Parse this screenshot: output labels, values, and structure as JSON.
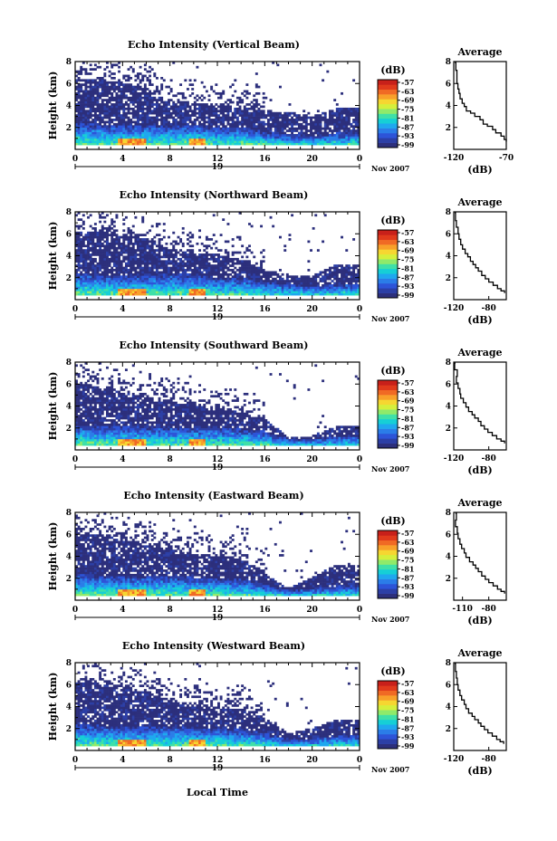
{
  "chart_data": {
    "type": "heatmap",
    "figure_xlabel": "Local Time",
    "colorbar_unit": "(dB)",
    "colorbar_ticks": [
      "-57",
      "-63",
      "-69",
      "-75",
      "-81",
      "-87",
      "-93",
      "-99"
    ],
    "colormap": [
      "#2c2f7c",
      "#2c3fa6",
      "#2d54d8",
      "#2b7de8",
      "#1fa8ef",
      "#16cfd6",
      "#3fe0a8",
      "#8fea6a",
      "#d5ef3c",
      "#f6d631",
      "#f8a02a",
      "#f06a24",
      "#e03a1c",
      "#c8201a"
    ],
    "x_date_label": "19",
    "x_date_suffix": "Nov 2007",
    "avg_ylim": [
      0,
      8
    ],
    "panels": [
      {
        "title": "Echo Intensity (Vertical Beam)",
        "ylabel": "Height (km)",
        "xlim": [
          0,
          24
        ],
        "xticks": [
          "0",
          "4",
          "8",
          "12",
          "16",
          "20",
          "0"
        ],
        "yticks": [
          "2",
          "4",
          "6",
          "8"
        ],
        "ylim": [
          0,
          8
        ],
        "profile": [
          {
            "t": 0,
            "top": 6.3,
            "low": 2.4
          },
          {
            "t": 2,
            "top": 6.4,
            "low": 2.3
          },
          {
            "t": 4,
            "top": 6.1,
            "low": 2.2
          },
          {
            "t": 6,
            "top": 5.6,
            "low": 2.3
          },
          {
            "t": 8,
            "top": 4.3,
            "low": 2.2
          },
          {
            "t": 10,
            "top": 4.2,
            "low": 2.3
          },
          {
            "t": 12,
            "top": 3.9,
            "low": 2.0
          },
          {
            "t": 14,
            "top": 3.8,
            "low": 2.0
          },
          {
            "t": 16,
            "top": 3.6,
            "low": 1.6
          },
          {
            "t": 18,
            "top": 3.4,
            "low": 1.4
          },
          {
            "t": 20,
            "top": 3.0,
            "low": 1.2
          },
          {
            "t": 22,
            "top": 3.7,
            "low": 1.5
          },
          {
            "t": 24,
            "top": 3.9,
            "low": 1.5
          }
        ],
        "avg_xlabel": "(dB)",
        "avg_title": "Average",
        "avg_xlim": [
          -120,
          -70
        ],
        "avg_xticks": [
          "-120",
          "-70"
        ],
        "avg_yticks": [
          "2",
          "4",
          "6",
          "8"
        ],
        "avg_x": [
          -119,
          -118,
          -117,
          -117,
          -116,
          -115,
          -114,
          -112,
          -110,
          -108,
          -104,
          -100,
          -95,
          -92,
          -88,
          -83,
          -80,
          -75,
          -72,
          -70
        ],
        "avg_y": [
          7.9,
          7.2,
          6.6,
          6.0,
          5.5,
          5.1,
          4.6,
          4.2,
          3.9,
          3.5,
          3.3,
          3.0,
          2.7,
          2.3,
          2.1,
          1.8,
          1.5,
          1.2,
          0.9,
          0.7
        ]
      },
      {
        "title": "Echo Intensity (Northward Beam)",
        "ylabel": "Height (km)",
        "xlim": [
          0,
          24
        ],
        "xticks": [
          "0",
          "4",
          "8",
          "12",
          "16",
          "20",
          "0"
        ],
        "yticks": [
          "2",
          "4",
          "6",
          "8"
        ],
        "ylim": [
          0,
          8
        ],
        "profile": [
          {
            "t": 0,
            "top": 6.2,
            "low": 2.4
          },
          {
            "t": 2,
            "top": 6.1,
            "low": 2.3
          },
          {
            "t": 4,
            "top": 5.9,
            "low": 2.2
          },
          {
            "t": 6,
            "top": 5.6,
            "low": 2.3
          },
          {
            "t": 8,
            "top": 4.6,
            "low": 2.3
          },
          {
            "t": 10,
            "top": 4.3,
            "low": 2.3
          },
          {
            "t": 12,
            "top": 4.1,
            "low": 2.0
          },
          {
            "t": 14,
            "top": 3.6,
            "low": 2.0
          },
          {
            "t": 16,
            "top": 2.7,
            "low": 1.6
          },
          {
            "t": 18,
            "top": 2.3,
            "low": 1.4
          },
          {
            "t": 20,
            "top": 2.2,
            "low": 1.2
          },
          {
            "t": 22,
            "top": 3.2,
            "low": 1.4
          },
          {
            "t": 24,
            "top": 3.2,
            "low": 1.5
          }
        ],
        "avg_xlabel": "(dB)",
        "avg_title": "Average",
        "avg_xlim": [
          -120,
          -60
        ],
        "avg_xticks": [
          "-120",
          "-80"
        ],
        "avg_yticks": [
          "2",
          "4",
          "6",
          "8"
        ],
        "avg_x": [
          -119,
          -118,
          -117,
          -115,
          -114,
          -112,
          -110,
          -107,
          -104,
          -101,
          -98,
          -95,
          -92,
          -88,
          -84,
          -80,
          -75,
          -70,
          -66,
          -62
        ],
        "avg_y": [
          7.9,
          7.2,
          6.6,
          6.0,
          5.5,
          5.0,
          4.6,
          4.2,
          3.9,
          3.5,
          3.2,
          2.9,
          2.6,
          2.2,
          1.9,
          1.6,
          1.3,
          1.0,
          0.8,
          0.6
        ]
      },
      {
        "title": "Echo Intensity (Southward Beam)",
        "ylabel": "Height (km)",
        "xlim": [
          0,
          24
        ],
        "xticks": [
          "0",
          "4",
          "8",
          "12",
          "16",
          "20",
          "0"
        ],
        "yticks": [
          "2",
          "4",
          "6",
          "8"
        ],
        "ylim": [
          0,
          8
        ],
        "profile": [
          {
            "t": 0,
            "top": 6.0,
            "low": 2.3
          },
          {
            "t": 2,
            "top": 5.8,
            "low": 2.2
          },
          {
            "t": 4,
            "top": 5.2,
            "low": 2.2
          },
          {
            "t": 6,
            "top": 4.8,
            "low": 2.1
          },
          {
            "t": 8,
            "top": 4.4,
            "low": 2.1
          },
          {
            "t": 10,
            "top": 4.0,
            "low": 2.0
          },
          {
            "t": 12,
            "top": 3.8,
            "low": 2.0
          },
          {
            "t": 14,
            "top": 3.4,
            "low": 1.9
          },
          {
            "t": 16,
            "top": 2.8,
            "low": 1.7
          },
          {
            "t": 18,
            "top": 1.2,
            "low": 1.0
          },
          {
            "t": 20,
            "top": 1.3,
            "low": 1.0
          },
          {
            "t": 22,
            "top": 2.1,
            "low": 1.2
          },
          {
            "t": 24,
            "top": 2.2,
            "low": 1.3
          }
        ],
        "avg_xlabel": "(dB)",
        "avg_title": "Average",
        "avg_xlim": [
          -120,
          -60
        ],
        "avg_xticks": [
          "-120",
          "-80"
        ],
        "avg_yticks": [
          "2",
          "4",
          "6",
          "8"
        ],
        "avg_x": [
          -118,
          -119,
          -116,
          -117,
          -115,
          -113,
          -112,
          -109,
          -106,
          -103,
          -99,
          -96,
          -92,
          -89,
          -85,
          -81,
          -76,
          -71,
          -66,
          -62
        ],
        "avg_y": [
          7.9,
          7.3,
          6.7,
          6.1,
          5.6,
          5.1,
          4.7,
          4.3,
          3.9,
          3.5,
          3.2,
          2.9,
          2.6,
          2.2,
          1.9,
          1.6,
          1.3,
          1.0,
          0.8,
          0.6
        ]
      },
      {
        "title": "Echo Intensity (Eastward Beam)",
        "ylabel": "Height (km)",
        "xlim": [
          0,
          24
        ],
        "xticks": [
          "0",
          "4",
          "8",
          "12",
          "16",
          "20",
          "0"
        ],
        "yticks": [
          "2",
          "4",
          "6",
          "8"
        ],
        "ylim": [
          0,
          8
        ],
        "profile": [
          {
            "t": 0,
            "top": 6.1,
            "low": 2.4
          },
          {
            "t": 2,
            "top": 6.0,
            "low": 2.3
          },
          {
            "t": 4,
            "top": 5.5,
            "low": 2.2
          },
          {
            "t": 6,
            "top": 5.0,
            "low": 2.2
          },
          {
            "t": 8,
            "top": 4.6,
            "low": 2.2
          },
          {
            "t": 10,
            "top": 4.1,
            "low": 2.1
          },
          {
            "t": 12,
            "top": 3.9,
            "low": 2.0
          },
          {
            "t": 14,
            "top": 3.7,
            "low": 1.9
          },
          {
            "t": 16,
            "top": 2.4,
            "low": 1.5
          },
          {
            "t": 18,
            "top": 1.1,
            "low": 0.9
          },
          {
            "t": 20,
            "top": 2.1,
            "low": 1.1
          },
          {
            "t": 22,
            "top": 3.2,
            "low": 1.3
          },
          {
            "t": 24,
            "top": 3.3,
            "low": 1.4
          }
        ],
        "avg_xlabel": "(dB)",
        "avg_title": "Average",
        "avg_xlim": [
          -120,
          -60
        ],
        "avg_xticks": [
          "-110",
          "-80"
        ],
        "avg_yticks": [
          "2",
          "4",
          "6",
          "8"
        ],
        "avg_x": [
          -118,
          -117,
          -118,
          -116,
          -115,
          -113,
          -111,
          -108,
          -106,
          -102,
          -98,
          -95,
          -92,
          -88,
          -84,
          -80,
          -75,
          -70,
          -66,
          -62
        ],
        "avg_y": [
          7.9,
          7.3,
          6.7,
          6.1,
          5.6,
          5.1,
          4.7,
          4.3,
          3.9,
          3.5,
          3.2,
          2.9,
          2.6,
          2.2,
          1.9,
          1.6,
          1.3,
          1.0,
          0.8,
          0.6
        ]
      },
      {
        "title": "Echo Intensity (Westward Beam)",
        "ylabel": "Height (km)",
        "xlim": [
          0,
          24
        ],
        "xticks": [
          "0",
          "4",
          "8",
          "12",
          "16",
          "20",
          "0"
        ],
        "yticks": [
          "2",
          "4",
          "6",
          "8"
        ],
        "ylim": [
          0,
          8
        ],
        "profile": [
          {
            "t": 0,
            "top": 6.2,
            "low": 2.4
          },
          {
            "t": 2,
            "top": 6.1,
            "low": 2.3
          },
          {
            "t": 4,
            "top": 5.6,
            "low": 2.2
          },
          {
            "t": 6,
            "top": 5.3,
            "low": 2.2
          },
          {
            "t": 8,
            "top": 4.5,
            "low": 2.2
          },
          {
            "t": 10,
            "top": 4.2,
            "low": 2.1
          },
          {
            "t": 12,
            "top": 3.9,
            "low": 2.0
          },
          {
            "t": 14,
            "top": 3.7,
            "low": 1.9
          },
          {
            "t": 16,
            "top": 2.9,
            "low": 1.6
          },
          {
            "t": 18,
            "top": 1.6,
            "low": 1.0
          },
          {
            "t": 20,
            "top": 2.0,
            "low": 1.1
          },
          {
            "t": 22,
            "top": 2.8,
            "low": 1.3
          },
          {
            "t": 24,
            "top": 2.9,
            "low": 1.4
          }
        ],
        "avg_xlabel": "(dB)",
        "avg_title": "Average",
        "avg_xlim": [
          -120,
          -60
        ],
        "avg_xticks": [
          "-120",
          "-80"
        ],
        "avg_yticks": [
          "2",
          "4",
          "6",
          "8"
        ],
        "avg_x": [
          -119,
          -118,
          -117,
          -116,
          -115,
          -113,
          -111,
          -108,
          -106,
          -103,
          -99,
          -96,
          -92,
          -89,
          -85,
          -81,
          -76,
          -71,
          -67,
          -63
        ],
        "avg_y": [
          7.9,
          7.2,
          6.6,
          6.0,
          5.5,
          5.0,
          4.6,
          4.2,
          3.8,
          3.4,
          3.1,
          2.8,
          2.5,
          2.2,
          1.9,
          1.6,
          1.3,
          1.0,
          0.8,
          0.6
        ]
      }
    ]
  }
}
